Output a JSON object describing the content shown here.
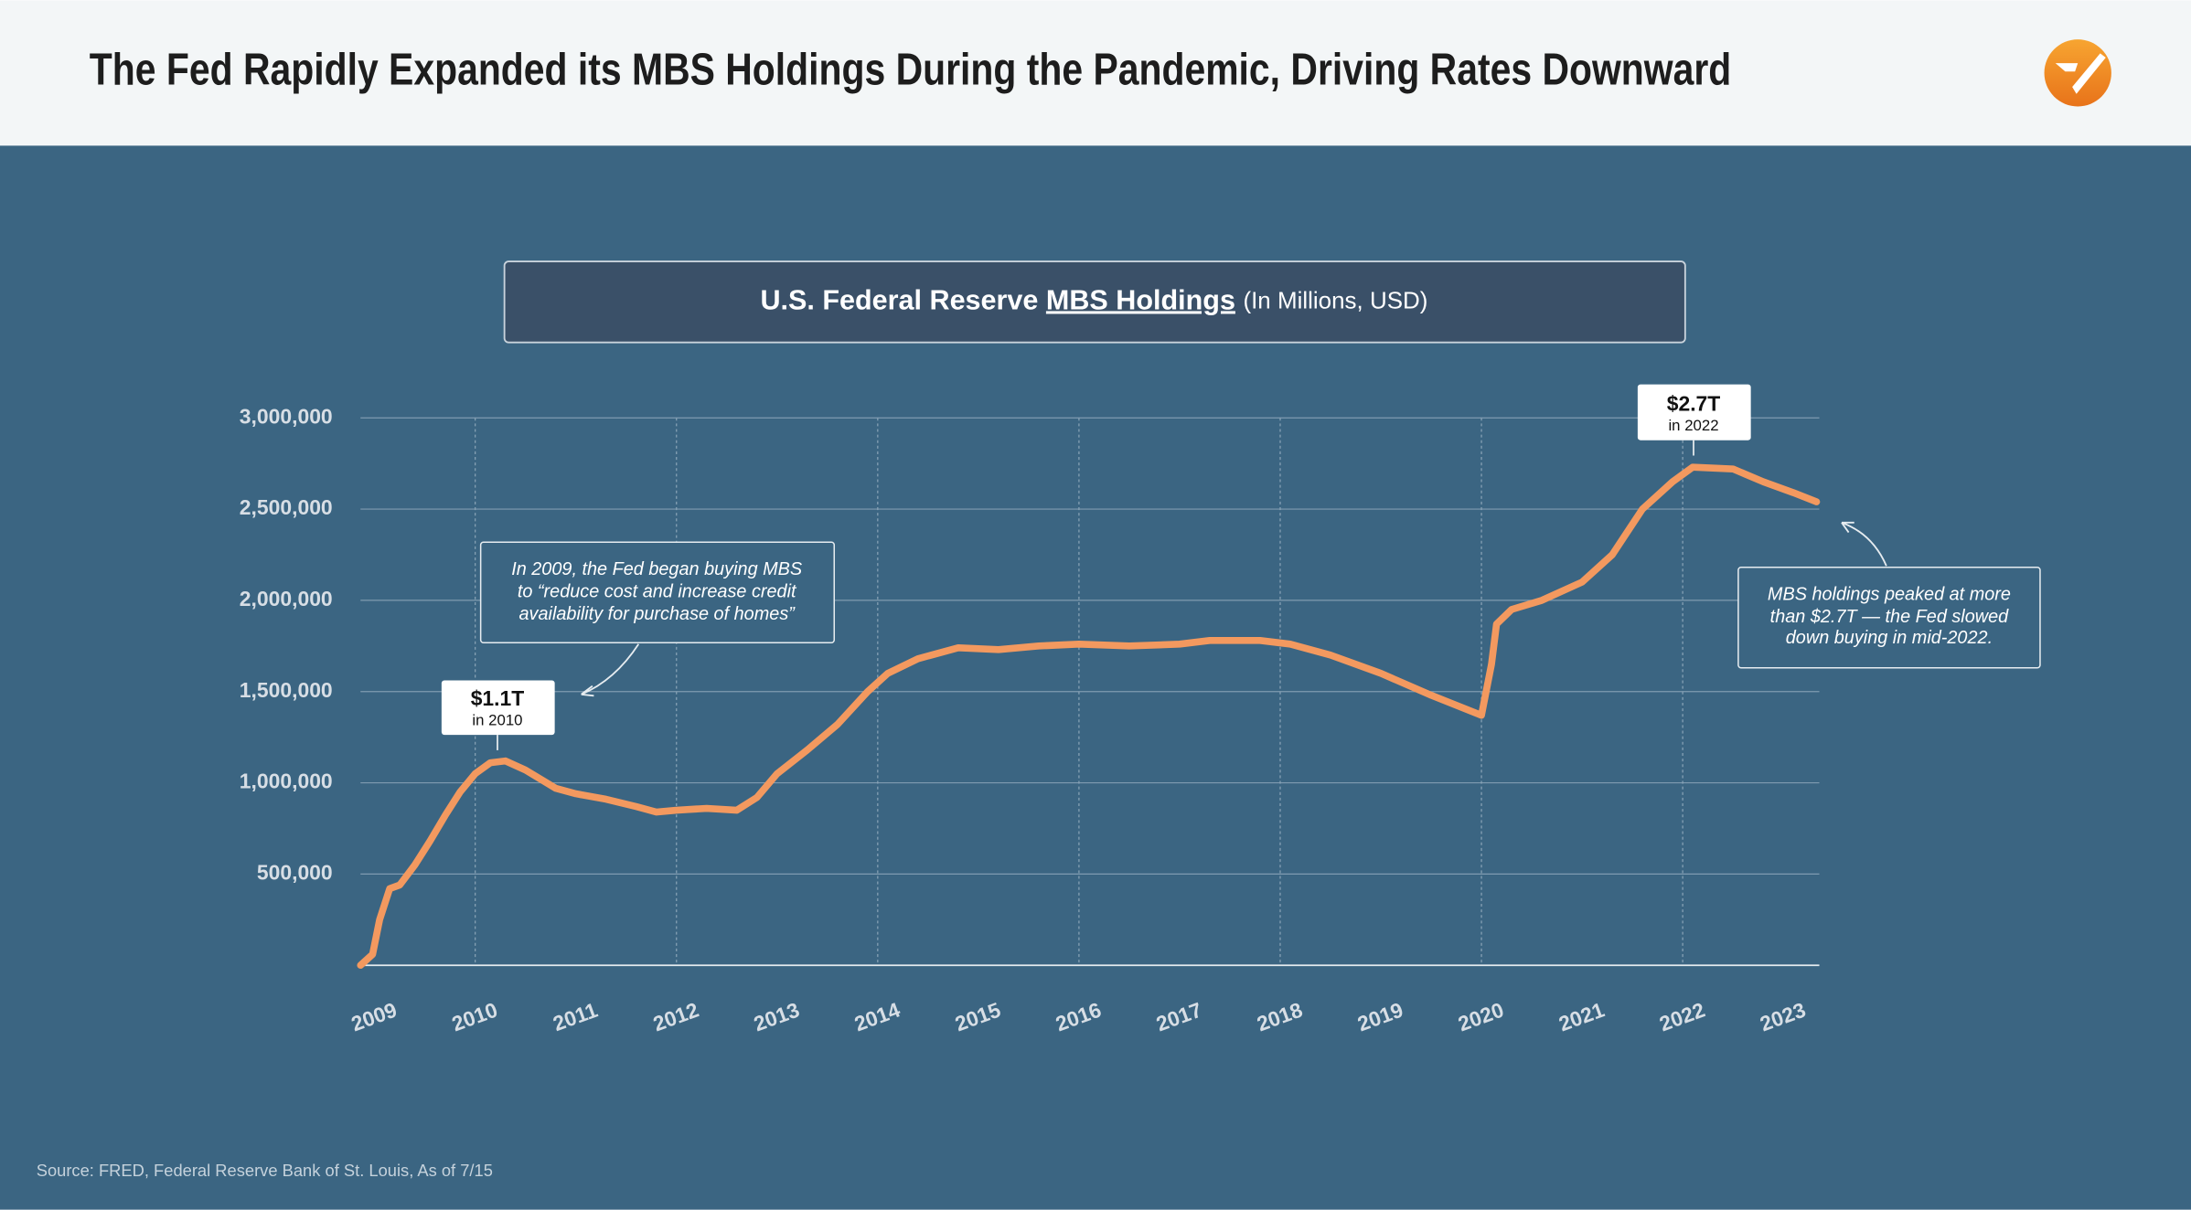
{
  "header": {
    "title": "The Fed Rapidly Expanded its MBS Holdings During the Pandemic, Driving Rates Downward"
  },
  "chart_data": {
    "type": "line",
    "title": {
      "before": "U.S. Federal Reserve",
      "emphasis": "MBS Holdings",
      "after": "(In Millions, USD)"
    },
    "x": [
      2008.86,
      2008.98,
      2009.05,
      2009.15,
      2009.25,
      2009.4,
      2009.55,
      2009.7,
      2009.85,
      2010.0,
      2010.15,
      2010.3,
      2010.5,
      2010.8,
      2011.0,
      2011.3,
      2011.6,
      2011.8,
      2012.0,
      2012.3,
      2012.6,
      2012.8,
      2013.0,
      2013.3,
      2013.6,
      2013.9,
      2014.1,
      2014.4,
      2014.8,
      2015.2,
      2015.6,
      2016.0,
      2016.5,
      2017.0,
      2017.3,
      2017.8,
      2018.1,
      2018.5,
      2019.0,
      2019.5,
      2020.0,
      2020.1,
      2020.15,
      2020.3,
      2020.6,
      2021.0,
      2021.3,
      2021.6,
      2021.9,
      2022.1,
      2022.5,
      2022.8,
      2023.1,
      2023.33
    ],
    "values": [
      0,
      60000,
      250000,
      420000,
      440000,
      550000,
      680000,
      820000,
      950000,
      1050000,
      1110000,
      1120000,
      1070000,
      970000,
      940000,
      910000,
      870000,
      840000,
      850000,
      860000,
      850000,
      920000,
      1050000,
      1180000,
      1320000,
      1500000,
      1600000,
      1680000,
      1740000,
      1730000,
      1750000,
      1760000,
      1750000,
      1760000,
      1780000,
      1780000,
      1760000,
      1700000,
      1600000,
      1480000,
      1370000,
      1650000,
      1870000,
      1950000,
      2000000,
      2100000,
      2250000,
      2500000,
      2650000,
      2730000,
      2720000,
      2650000,
      2590000,
      2540000
    ],
    "color": "#f3995f",
    "xlim": [
      2008.86,
      2023.33
    ],
    "xticks": [
      2009,
      2010,
      2011,
      2012,
      2013,
      2014,
      2015,
      2016,
      2017,
      2018,
      2019,
      2020,
      2021,
      2022,
      2023
    ],
    "x_grid_every": 2,
    "ylim": [
      0,
      3000000
    ],
    "yticks": [
      {
        "value": 500000,
        "label": "500,000"
      },
      {
        "value": 1000000,
        "label": "1,000,000"
      },
      {
        "value": 1500000,
        "label": "1,500,000"
      },
      {
        "value": 2000000,
        "label": "2,000,000"
      },
      {
        "value": 2500000,
        "label": "2,500,000"
      },
      {
        "value": 3000000,
        "label": "3,000,000"
      }
    ],
    "grid": true,
    "callouts": [
      {
        "value": "$1.1T",
        "note": "in 2010"
      },
      {
        "value": "$2.7T",
        "note": "in 2022"
      }
    ],
    "annotations": [
      {
        "lines": [
          "In 2009, the Fed began buying MBS",
          "to “reduce cost and increase credit",
          "availability for purchase of homes”"
        ]
      },
      {
        "lines": [
          "MBS holdings peaked at more",
          "than $2.7T — the Fed slowed",
          "down buying in mid-2022."
        ]
      }
    ]
  },
  "footer": {
    "source": "Source: FRED, Federal Reserve Bank of St. Louis, As of 7/15"
  }
}
